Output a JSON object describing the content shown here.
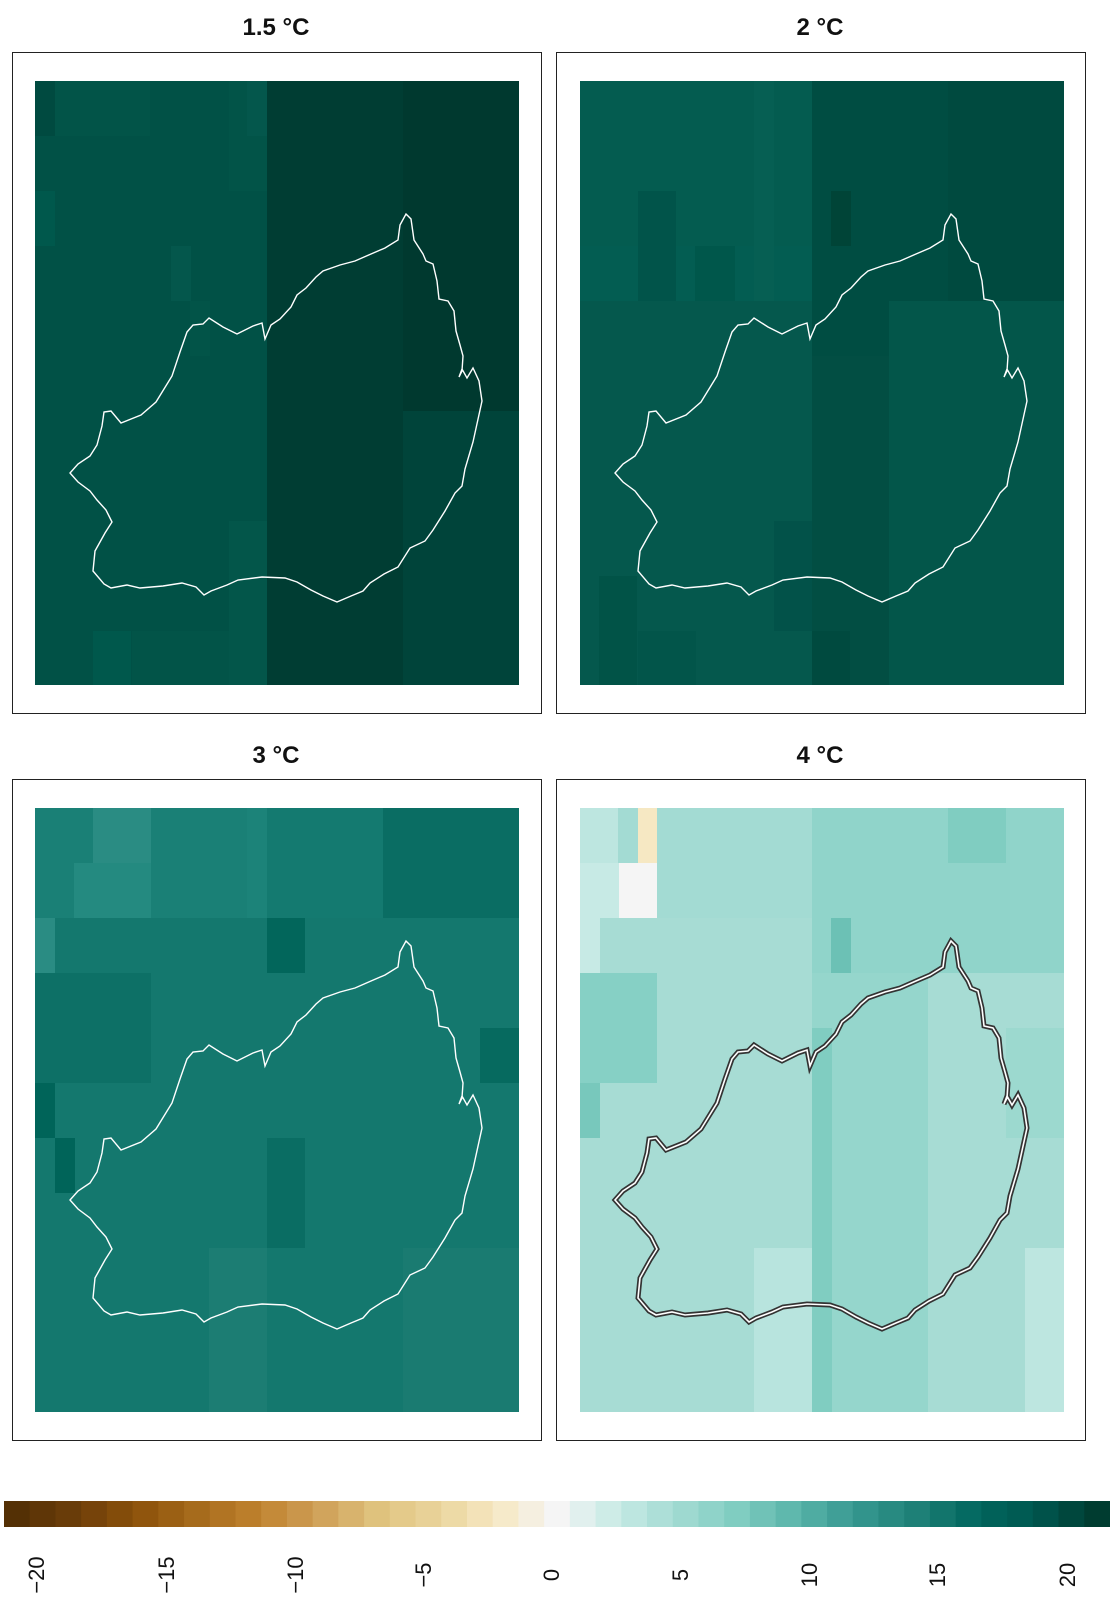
{
  "panels": [
    {
      "id": "p1",
      "title": "1.5 °C"
    },
    {
      "id": "p2",
      "title": "2 °C"
    },
    {
      "id": "p3",
      "title": "3 °C"
    },
    {
      "id": "p4",
      "title": "4 °C"
    }
  ],
  "legend": {
    "ticks": [
      "−20",
      "−15",
      "−10",
      "−5",
      "0",
      "5",
      "10",
      "15",
      "20"
    ],
    "min": -20,
    "max": 20,
    "colors": [
      "#543005",
      "#6d3e0a",
      "#8c510a",
      "#a66b1c",
      "#bf812d",
      "#cf9f57",
      "#dfc27d",
      "#ead49b",
      "#f6e8c3",
      "#f5f5f5",
      "#c7eae5",
      "#a3dbd3",
      "#80cdc1",
      "#5ab4aa",
      "#35978f",
      "#1e8077",
      "#01665e",
      "#00564e",
      "#003c30"
    ]
  },
  "colors": {
    "outline_dark_panels": "#ffffff",
    "outline_light_panel": "#333333",
    "frame": "#222222"
  }
}
